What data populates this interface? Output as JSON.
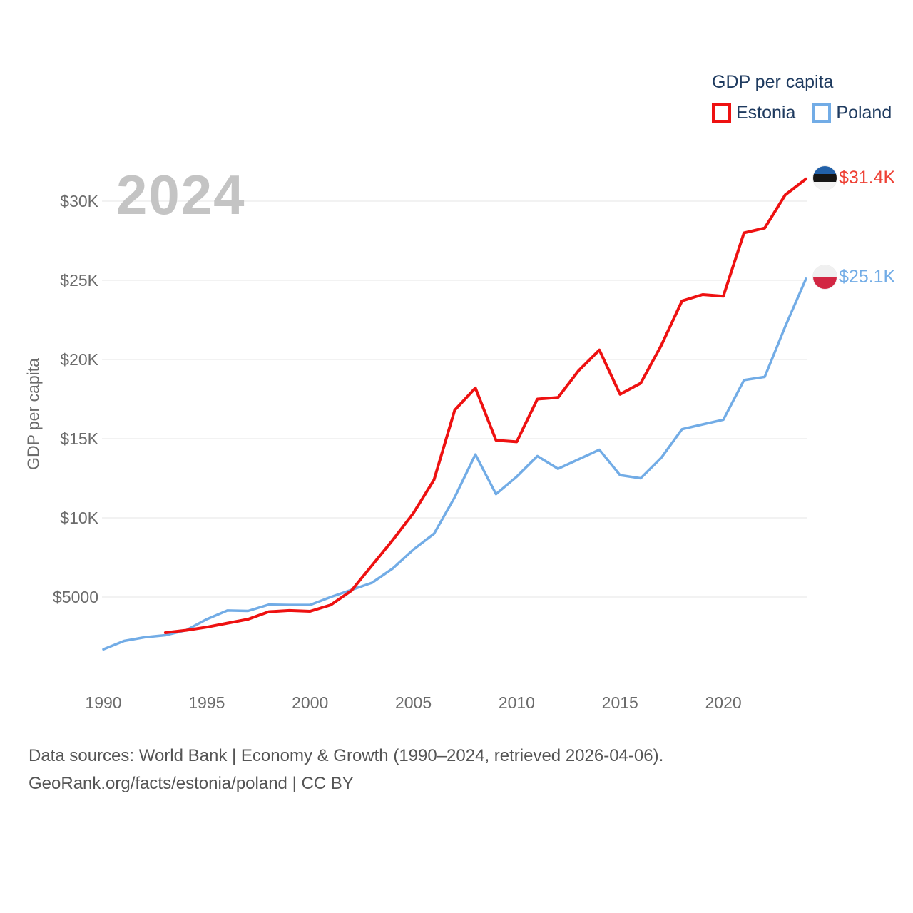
{
  "legend": {
    "title": "GDP per capita",
    "items": [
      {
        "label": "Estonia",
        "color": "#ee1111"
      },
      {
        "label": "Poland",
        "color": "#72ace6"
      }
    ]
  },
  "watermark": "2024",
  "y_axis": {
    "title": "GDP per capita",
    "ticks": [
      {
        "label": "$30K",
        "value": 30000
      },
      {
        "label": "$25K",
        "value": 25000
      },
      {
        "label": "$20K",
        "value": 20000
      },
      {
        "label": "$15K",
        "value": 15000
      },
      {
        "label": "$10K",
        "value": 10000
      },
      {
        "label": "$5000",
        "value": 5000
      }
    ]
  },
  "x_axis": {
    "ticks": [
      1990,
      1995,
      2000,
      2005,
      2010,
      2015,
      2020
    ]
  },
  "end_labels": [
    {
      "series": "Estonia",
      "label": "$31.4K",
      "color": "#ee4135",
      "flag_icon": "estonia-flag-icon"
    },
    {
      "series": "Poland",
      "label": "$25.1K",
      "color": "#72ace6",
      "flag_icon": "poland-flag-icon"
    }
  ],
  "footer": {
    "line1": "Data sources: World Bank | Economy & Growth (1990–2024, retrieved 2026-04-06).",
    "line2": "GeoRank.org/facts/estonia/poland | CC BY"
  },
  "chart_data": {
    "type": "line",
    "title": "GDP per capita",
    "xlabel": "",
    "ylabel": "GDP per capita",
    "xlim": [
      1990,
      2024
    ],
    "ylim": [
      0,
      32000
    ],
    "grid": "horizontal",
    "legend_position": "top-right",
    "x": [
      1990,
      1991,
      1992,
      1993,
      1994,
      1995,
      1996,
      1997,
      1998,
      1999,
      2000,
      2001,
      2002,
      2003,
      2004,
      2005,
      2006,
      2007,
      2008,
      2009,
      2010,
      2011,
      2012,
      2013,
      2014,
      2015,
      2016,
      2017,
      2018,
      2019,
      2020,
      2021,
      2022,
      2023,
      2024
    ],
    "series": [
      {
        "name": "Estonia",
        "color": "#ee1111",
        "stroke_width": 4,
        "values": [
          null,
          null,
          null,
          2750,
          2900,
          3100,
          3350,
          3600,
          4070,
          4150,
          4100,
          4500,
          5400,
          7000,
          8600,
          10300,
          12400,
          16800,
          18200,
          14900,
          14800,
          17500,
          17600,
          19300,
          20600,
          17800,
          18500,
          20900,
          23700,
          24100,
          24000,
          28000,
          28300,
          30400,
          31400
        ]
      },
      {
        "name": "Poland",
        "color": "#72ace6",
        "stroke_width": 3.5,
        "values": [
          1700,
          2230,
          2460,
          2590,
          2900,
          3600,
          4150,
          4120,
          4520,
          4500,
          4500,
          5000,
          5450,
          5900,
          6800,
          8000,
          9000,
          11300,
          14000,
          11500,
          12600,
          13900,
          13100,
          13700,
          14300,
          12700,
          12500,
          13800,
          15600,
          15900,
          16200,
          18700,
          18900,
          22100,
          25100
        ]
      }
    ]
  }
}
